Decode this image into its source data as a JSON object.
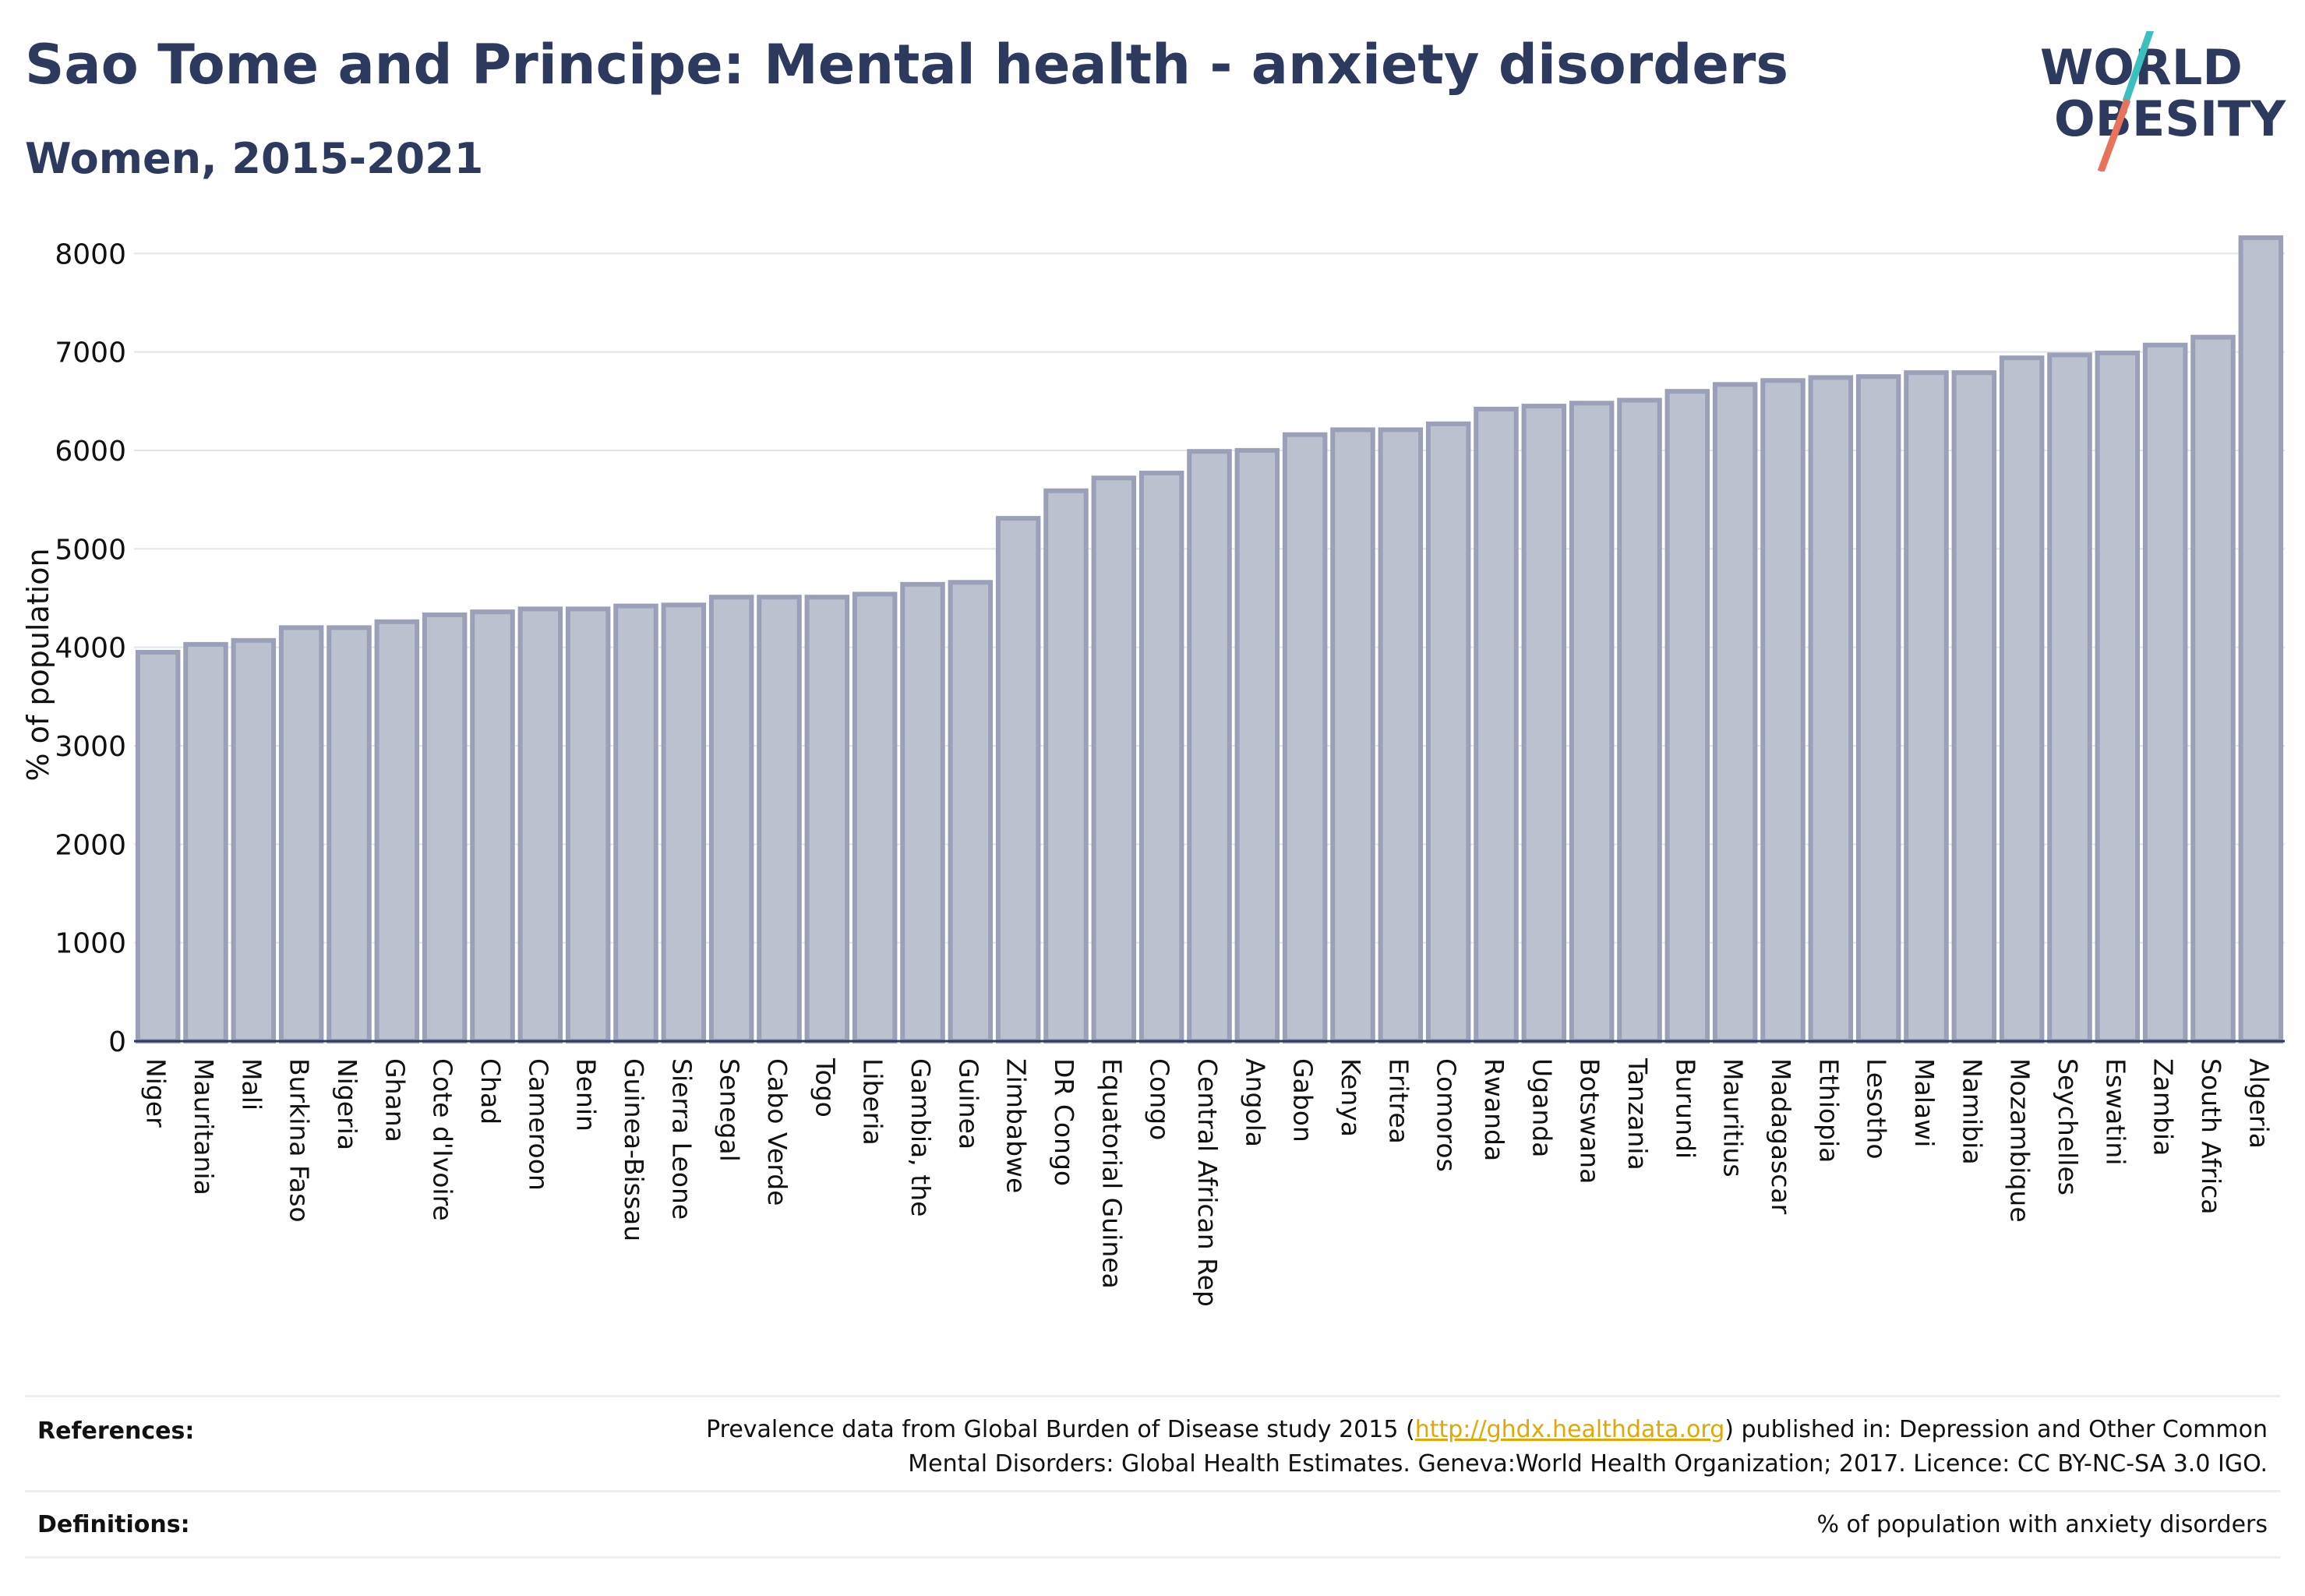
{
  "header": {
    "title": "Sao Tome and Principe: Mental health - anxiety disorders",
    "subtitle": "Women, 2015-2021"
  },
  "logo": {
    "line1": "WORLD",
    "line2": "OBESITY",
    "name": "world-obesity-logo"
  },
  "colors": {
    "bar_fill": "#bcc1cf",
    "bar_stroke": "#9aa0b7",
    "text": "#2d3a5e",
    "grid": "#e3e5ec",
    "logo_teal": "#3bbfbf",
    "logo_coral": "#e8735a",
    "link": "#e0a800"
  },
  "chart_data": {
    "type": "bar",
    "ylabel": "% of population",
    "xlabel": "",
    "ylim": [
      0,
      8200
    ],
    "yticks": [
      0,
      1000,
      2000,
      3000,
      4000,
      5000,
      6000,
      7000,
      8000
    ],
    "grid": true,
    "categories": [
      "Niger",
      "Mauritania",
      "Mali",
      "Burkina Faso",
      "Nigeria",
      "Ghana",
      "Cote d'Ivoire",
      "Chad",
      "Cameroon",
      "Benin",
      "Guinea-Bissau",
      "Sierra Leone",
      "Senegal",
      "Cabo Verde",
      "Togo",
      "Liberia",
      "Gambia, the",
      "Guinea",
      "Zimbabwe",
      "DR Congo",
      "Equatorial Guinea",
      "Congo",
      "Central African Rep",
      "Angola",
      "Gabon",
      "Kenya",
      "Eritrea",
      "Comoros",
      "Rwanda",
      "Uganda",
      "Botswana",
      "Tanzania",
      "Burundi",
      "Mauritius",
      "Madagascar",
      "Ethiopia",
      "Lesotho",
      "Malawi",
      "Namibia",
      "Mozambique",
      "Seychelles",
      "Eswatini",
      "Zambia",
      "South Africa",
      "Algeria"
    ],
    "values": [
      3950,
      4030,
      4070,
      4200,
      4200,
      4260,
      4330,
      4360,
      4390,
      4390,
      4420,
      4430,
      4510,
      4510,
      4510,
      4540,
      4640,
      4660,
      5310,
      5590,
      5720,
      5770,
      5990,
      6000,
      6160,
      6210,
      6210,
      6270,
      6420,
      6450,
      6480,
      6510,
      6600,
      6670,
      6710,
      6740,
      6750,
      6790,
      6790,
      6940,
      6970,
      6990,
      7070,
      7150,
      8160
    ]
  },
  "footer": {
    "references_label": "References:",
    "references_line1_before": "Prevalence data from Global Burden of Disease study 2015 (",
    "references_link": "http://ghdx.healthdata.org",
    "references_line1_after": ") published in: Depression and Other Common",
    "references_line2": "Mental Disorders: Global Health Estimates. Geneva:World Health Organization; 2017. Licence: CC BY-NC-SA 3.0 IGO.",
    "definitions_label": "Definitions:",
    "definitions_text": "% of population with anxiety disorders"
  }
}
